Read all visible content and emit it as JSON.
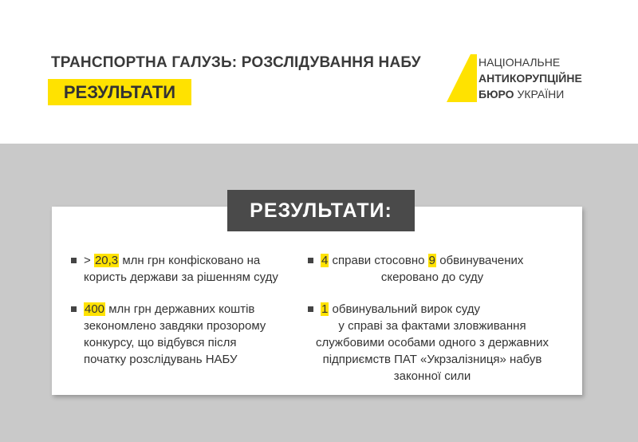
{
  "header": {
    "title": "ТРАНСПОРТНА ГАЛУЗЬ: РОЗСЛІДУВАННЯ НАБУ",
    "badge": "РЕЗУЛЬТАТИ"
  },
  "logo": {
    "line1": "НАЦІОНАЛЬНЕ",
    "line2": "АНТИКОРУПЦІЙНЕ",
    "line3_bold": "БЮРО",
    "line3_rest": "УКРАЇНИ"
  },
  "panel": {
    "label": "РЕЗУЛЬТАТИ:",
    "items": [
      {
        "first_line": [
          {
            "text": ">"
          },
          {
            "mark": "20,3"
          },
          {
            "text": "млн грн конфісковано на"
          }
        ],
        "lines": [
          "користь держави за рішенням суду"
        ]
      },
      {
        "first_line": [
          {
            "mark": "400"
          },
          {
            "text": "млн грн державних коштів"
          }
        ],
        "lines": [
          "зекономлено завдяки прозорому",
          "конкурсу, що відбувся після",
          "початку розслідувань НАБУ"
        ]
      },
      {
        "first_line": [
          {
            "mark": "4"
          },
          {
            "text": "справи стосовно"
          },
          {
            "mark": "9"
          },
          {
            "text": "обвинувачених"
          }
        ],
        "lines": [
          "скеровано до суду"
        ]
      },
      {
        "first_line": [
          {
            "mark": "1"
          },
          {
            "text": "обвинувальний вирок суду"
          }
        ],
        "lines": [
          "у справі за фактами зловживання",
          "службовими особами одного з державних",
          "підприємств ПАТ «Укрзалізниця» набув",
          "законної сили"
        ]
      }
    ]
  }
}
